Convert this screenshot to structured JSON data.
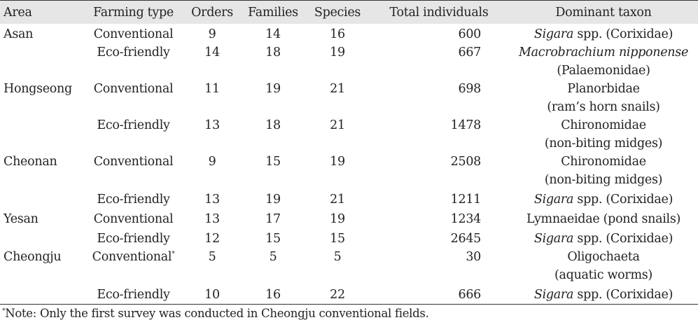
{
  "table": {
    "headers": [
      "Area",
      "Farming type",
      "Orders",
      "Families",
      "Species",
      "Total individuals",
      "Dominant taxon"
    ],
    "rows": [
      {
        "area": "Asan",
        "type": "Conventional",
        "type_sup": "",
        "orders": "9",
        "families": "14",
        "species": "16",
        "total": "600",
        "taxon_italic": "Sigara",
        "taxon_rest": " spp. (Corixidae)",
        "taxon_line2": ""
      },
      {
        "area": "",
        "type": "Eco-friendly",
        "type_sup": "",
        "orders": "14",
        "families": "18",
        "species": "19",
        "total": "667",
        "taxon_italic": "Macrobrachium nipponense",
        "taxon_rest": "",
        "taxon_line2": "(Palaemonidae)"
      },
      {
        "area": "Hongseong",
        "type": "Conventional",
        "type_sup": "",
        "orders": "11",
        "families": "19",
        "species": "21",
        "total": "698",
        "taxon_italic": "",
        "taxon_rest": "Planorbidae",
        "taxon_line2": "(ram’s horn snails)"
      },
      {
        "area": "",
        "type": "Eco-friendly",
        "type_sup": "",
        "orders": "13",
        "families": "18",
        "species": "21",
        "total": "1478",
        "taxon_italic": "",
        "taxon_rest": "Chironomidae",
        "taxon_line2": "(non-biting midges)"
      },
      {
        "area": "Cheonan",
        "type": "Conventional",
        "type_sup": "",
        "orders": "9",
        "families": "15",
        "species": "19",
        "total": "2508",
        "taxon_italic": "",
        "taxon_rest": "Chironomidae",
        "taxon_line2": "(non-biting midges)"
      },
      {
        "area": "",
        "type": "Eco-friendly",
        "type_sup": "",
        "orders": "13",
        "families": "19",
        "species": "21",
        "total": "1211",
        "taxon_italic": "Sigara",
        "taxon_rest": " spp. (Corixidae)",
        "taxon_line2": ""
      },
      {
        "area": "Yesan",
        "type": "Conventional",
        "type_sup": "",
        "orders": "13",
        "families": "17",
        "species": "19",
        "total": "1234",
        "taxon_italic": "",
        "taxon_rest": "Lymnaeidae (pond snails)",
        "taxon_line2": ""
      },
      {
        "area": "",
        "type": "Eco-friendly",
        "type_sup": "",
        "orders": "12",
        "families": "15",
        "species": "15",
        "total": "2645",
        "taxon_italic": "Sigara",
        "taxon_rest": " spp. (Corixidae)",
        "taxon_line2": ""
      },
      {
        "area": "Cheongju",
        "type": "Conventional",
        "type_sup": "*",
        "orders": "5",
        "families": "5",
        "species": "5",
        "total": "30",
        "taxon_italic": "",
        "taxon_rest": "Oligochaeta",
        "taxon_line2": "(aquatic worms)"
      },
      {
        "area": "",
        "type": "Eco-friendly",
        "type_sup": "",
        "orders": "10",
        "families": "16",
        "species": "22",
        "total": "666",
        "taxon_italic": "Sigara",
        "taxon_rest": " spp. (Corixidae)",
        "taxon_line2": ""
      }
    ]
  },
  "note": {
    "marker": "*",
    "text": "Note: Only the first survey was conducted in Cheongju conventional fields."
  }
}
